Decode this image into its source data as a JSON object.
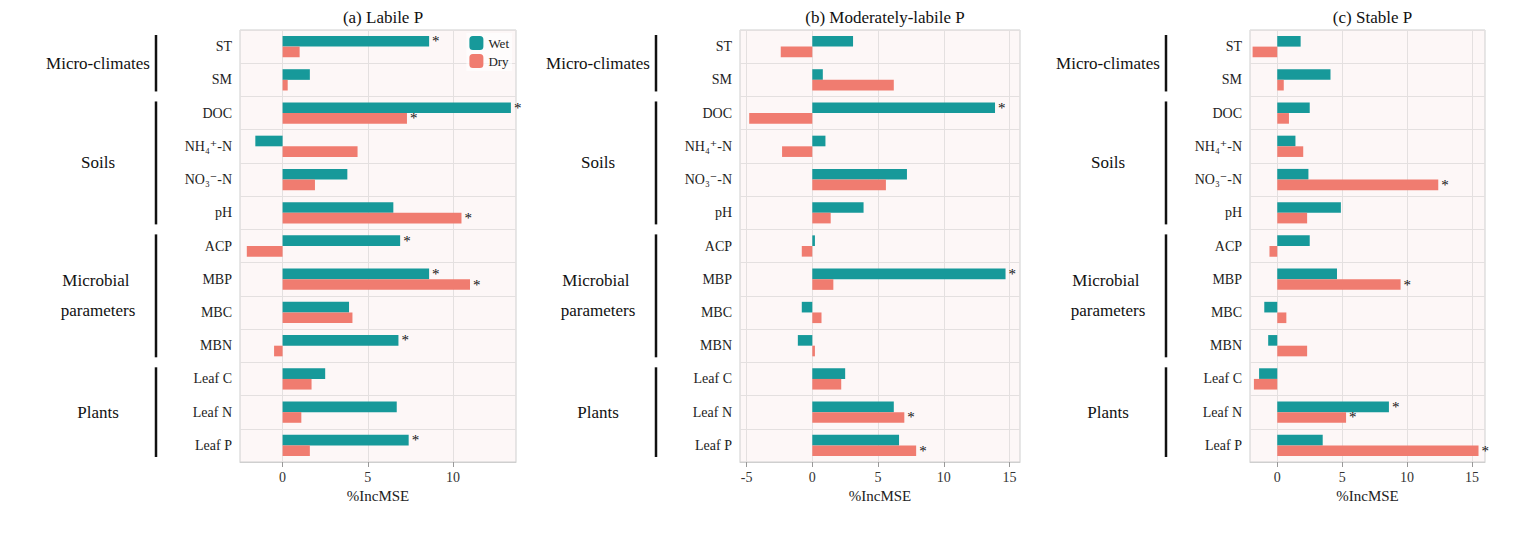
{
  "chart_data": [
    {
      "type": "bar",
      "title": "(a) Labile P",
      "orientation": "horizontal",
      "grid": true,
      "legend": "top right",
      "x_label": "%IncMSE",
      "categories": [
        "ST",
        "SM",
        "DOC",
        "NH₄⁺-N",
        "NO₃⁻-N",
        "pH",
        "ACP",
        "MBP",
        "MBC",
        "MBN",
        "Leaf C",
        "Leaf N",
        "Leaf P"
      ],
      "groups": [
        {
          "name": "Micro-climates",
          "categories": [
            "ST",
            "SM"
          ]
        },
        {
          "name": "Soils",
          "categories": [
            "DOC",
            "NH₄⁺-N",
            "NO₃⁻-N",
            "pH"
          ]
        },
        {
          "name": "Microbial parameters",
          "categories": [
            "ACP",
            "MBP",
            "MBC",
            "MBN"
          ]
        },
        {
          "name": "Plants",
          "categories": [
            "Leaf C",
            "Leaf N",
            "Leaf P"
          ]
        }
      ],
      "series": [
        {
          "name": "Wet",
          "color": "#17999a",
          "values": [
            8.6,
            1.6,
            13.4,
            -1.6,
            3.8,
            6.5,
            6.9,
            8.6,
            3.9,
            6.8,
            2.5,
            6.7,
            7.4
          ],
          "significance": [
            "*",
            null,
            "*",
            null,
            null,
            null,
            "*",
            "*",
            null,
            "*",
            null,
            null,
            "*"
          ]
        },
        {
          "name": "Dry",
          "color": "#f07c70",
          "values": [
            1.0,
            0.3,
            7.3,
            4.4,
            1.9,
            10.5,
            -2.1,
            11.0,
            4.1,
            -0.5,
            1.7,
            1.1,
            1.6
          ],
          "significance": [
            null,
            null,
            "*",
            null,
            null,
            "*",
            null,
            "*",
            null,
            null,
            null,
            null,
            null
          ]
        }
      ],
      "xlim": [
        -2.5,
        13.7
      ],
      "xticks": [
        0,
        5,
        10
      ]
    },
    {
      "type": "bar",
      "title": "(b) Moderately-labile P",
      "orientation": "horizontal",
      "grid": true,
      "x_label": "%IncMSE",
      "categories": [
        "ST",
        "SM",
        "DOC",
        "NH₄⁺-N",
        "NO₃⁻-N",
        "pH",
        "ACP",
        "MBP",
        "MBC",
        "MBN",
        "Leaf C",
        "Leaf N",
        "Leaf P"
      ],
      "groups": [
        {
          "name": "Micro-climates",
          "categories": [
            "ST",
            "SM"
          ]
        },
        {
          "name": "Soils",
          "categories": [
            "DOC",
            "NH₄⁺-N",
            "NO₃⁻-N",
            "pH"
          ]
        },
        {
          "name": "Microbial parameters",
          "categories": [
            "ACP",
            "MBP",
            "MBC",
            "MBN"
          ]
        },
        {
          "name": "Plants",
          "categories": [
            "Leaf C",
            "Leaf N",
            "Leaf P"
          ]
        }
      ],
      "series": [
        {
          "name": "Wet",
          "color": "#17999a",
          "values": [
            3.1,
            0.8,
            13.9,
            1.0,
            7.2,
            3.9,
            0.2,
            14.7,
            -0.8,
            -1.1,
            2.5,
            6.2,
            6.6
          ],
          "significance": [
            null,
            null,
            "*",
            null,
            null,
            null,
            null,
            "*",
            null,
            null,
            null,
            null,
            null
          ]
        },
        {
          "name": "Dry",
          "color": "#f07c70",
          "values": [
            -2.4,
            6.2,
            -4.8,
            -2.3,
            5.6,
            1.4,
            -0.8,
            1.6,
            0.7,
            0.2,
            2.2,
            7.0,
            7.9
          ],
          "significance": [
            null,
            null,
            null,
            null,
            null,
            null,
            null,
            null,
            null,
            null,
            null,
            "*",
            "*"
          ]
        }
      ],
      "xlim": [
        -5.5,
        15.8
      ],
      "xticks": [
        -5,
        0,
        5,
        10,
        15
      ]
    },
    {
      "type": "bar",
      "title": "(c) Stable P",
      "orientation": "horizontal",
      "grid": true,
      "x_label": "%IncMSE",
      "categories": [
        "ST",
        "SM",
        "DOC",
        "NH₄⁺-N",
        "NO₃⁻-N",
        "pH",
        "ACP",
        "MBP",
        "MBC",
        "MBN",
        "Leaf C",
        "Leaf N",
        "Leaf P"
      ],
      "groups": [
        {
          "name": "Micro-climates",
          "categories": [
            "ST",
            "SM"
          ]
        },
        {
          "name": "Soils",
          "categories": [
            "DOC",
            "NH₄⁺-N",
            "NO₃⁻-N",
            "pH"
          ]
        },
        {
          "name": "Microbial parameters",
          "categories": [
            "ACP",
            "MBP",
            "MBC",
            "MBN"
          ]
        },
        {
          "name": "Plants",
          "categories": [
            "Leaf C",
            "Leaf N",
            "Leaf P"
          ]
        }
      ],
      "series": [
        {
          "name": "Wet",
          "color": "#17999a",
          "values": [
            1.8,
            4.1,
            2.5,
            1.4,
            2.4,
            4.9,
            2.5,
            4.6,
            -1.0,
            -0.7,
            -1.4,
            8.6,
            3.5
          ],
          "significance": [
            null,
            null,
            null,
            null,
            null,
            null,
            null,
            null,
            null,
            null,
            null,
            "*",
            null
          ]
        },
        {
          "name": "Dry",
          "color": "#f07c70",
          "values": [
            -1.9,
            0.5,
            0.9,
            2.0,
            12.4,
            2.3,
            -0.6,
            9.5,
            0.7,
            2.3,
            -1.8,
            5.3,
            15.5
          ],
          "significance": [
            null,
            null,
            null,
            null,
            "*",
            null,
            null,
            "*",
            null,
            null,
            null,
            "*",
            "*"
          ]
        }
      ],
      "xlim": [
        -2.1,
        16
      ],
      "xticks": [
        0,
        5,
        10,
        15
      ]
    }
  ]
}
